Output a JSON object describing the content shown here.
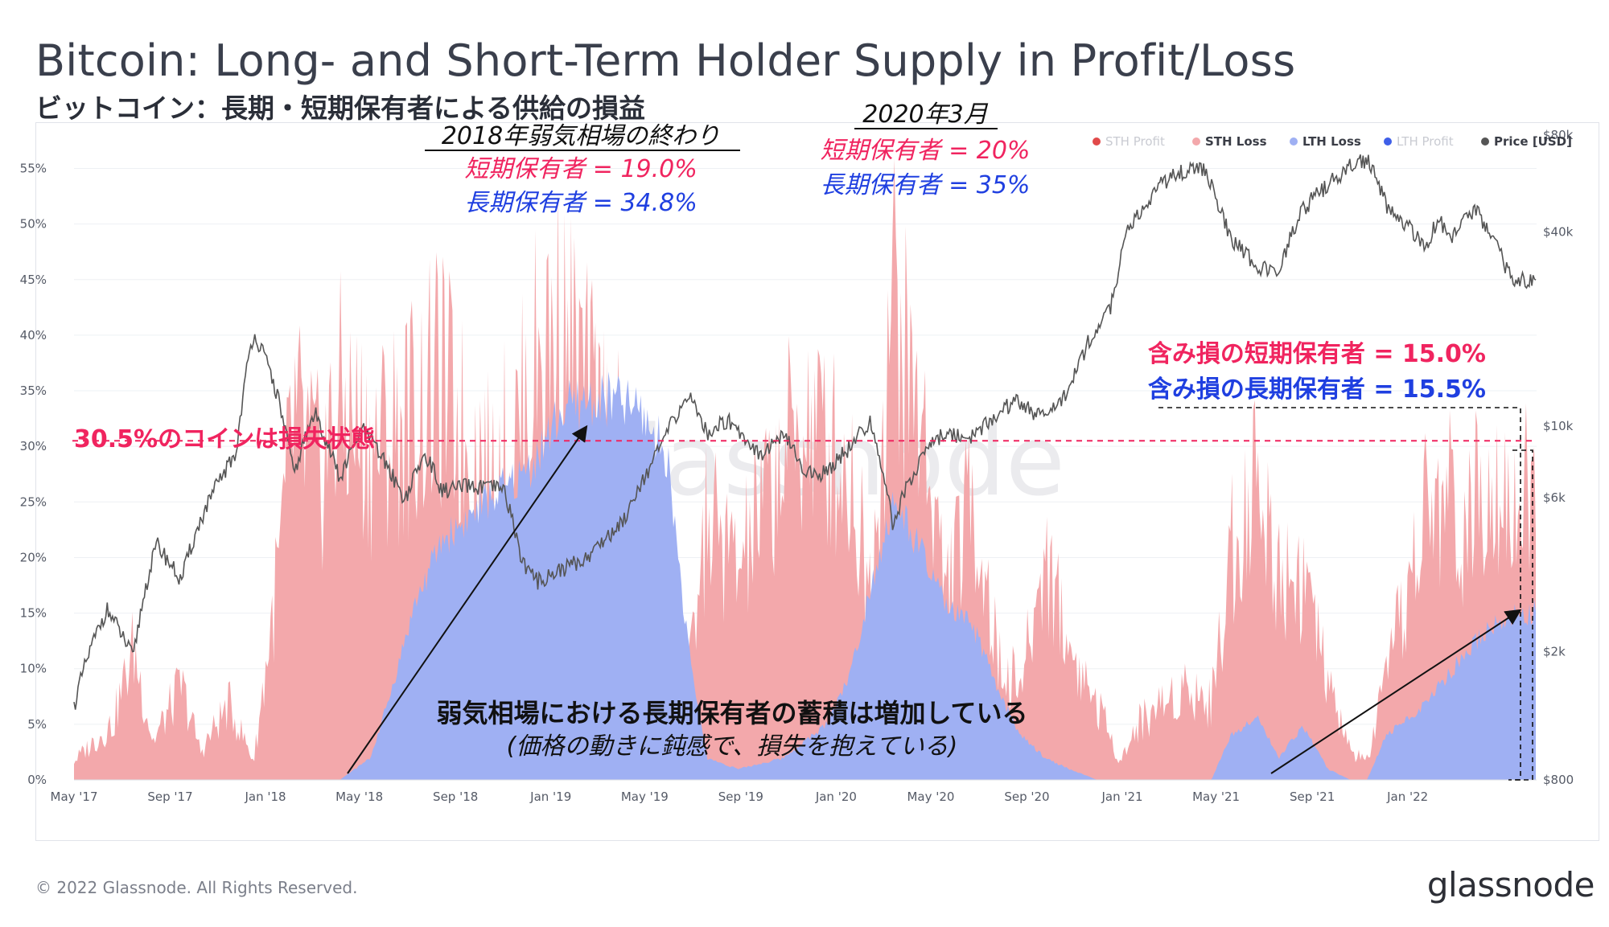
{
  "header": {
    "title": "Bitcoin: Long- and Short-Term Holder Supply in Profit/Loss",
    "subtitle": "ビットコイン：長期・短期保有者による供給の損益"
  },
  "footer": {
    "copyright": "© 2022 Glassnode. All Rights Reserved.",
    "brand": "glassnode"
  },
  "colors": {
    "sth_profit": "#e14a4a",
    "sth_loss": "#f3a8ab",
    "lth_loss": "#9fb0f3",
    "lth_profit": "#3f5fe8",
    "price": "#555555",
    "annot_pink": "#f0245f",
    "annot_blue": "#1f3fe0"
  },
  "legend": [
    "STH Profit",
    "STH Loss",
    "LTH Loss",
    "LTH Profit",
    "Price [USD]"
  ],
  "annotations": {
    "bear_end_title": "2018年弱気相場の終わり",
    "bear_end_sth": "短期保有者 = 19.0%",
    "bear_end_lth": "長期保有者 = 34.8%",
    "mar2020_title": "2020年3月",
    "mar2020_sth": "短期保有者 = 20%",
    "mar2020_lth": "長期保有者 = 35%",
    "current_sth": "含み損の短期保有者 = 15.0%",
    "current_lth": "含み損の長期保有者 = 15.5%",
    "loss_line": "30.5%のコインは損失状態",
    "accum_main": "弱気相場における長期保有者の蓄積は増加している",
    "accum_sub": "(価格の動きに鈍感で、損失を抱えている)",
    "watermark": "glassnode"
  },
  "chart_data": {
    "type": "area",
    "title": "Bitcoin: Long- and Short-Term Holder Supply in Profit/Loss",
    "y_left_ticks": [
      "0%",
      "5%",
      "10%",
      "15%",
      "20%",
      "25%",
      "30%",
      "35%",
      "40%",
      "45%",
      "50%",
      "55%"
    ],
    "y_right_ticks": [
      "$800",
      "$2k",
      "$6k",
      "$10k",
      "$40k",
      "$80k"
    ],
    "x_ticks": [
      "May '17",
      "Sep '17",
      "Jan '18",
      "May '18",
      "Sep '18",
      "Jan '19",
      "May '19",
      "Sep '19",
      "Jan '20",
      "May '20",
      "Sep '20",
      "Jan '21",
      "May '21",
      "Sep '21",
      "Jan '22"
    ],
    "y_left_range": [
      0,
      58
    ],
    "y_right_range_log": [
      800,
      80000
    ],
    "x_range": [
      "2017-05-01",
      "2022-06-15"
    ],
    "reference_line": 30.5,
    "series": [
      {
        "name": "STH Loss",
        "x": [
          "2017-05-01",
          "2017-06-20",
          "2017-07-16",
          "2017-08-10",
          "2017-09-15",
          "2017-10-10",
          "2017-11-15",
          "2017-12-17",
          "2018-01-20",
          "2018-02-06",
          "2018-03-10",
          "2018-04-06",
          "2018-05-15",
          "2018-06-28",
          "2018-08-14",
          "2018-09-15",
          "2018-10-15",
          "2018-11-25",
          "2018-12-15",
          "2019-01-15",
          "2019-02-20",
          "2019-03-25",
          "2019-04-25",
          "2019-05-30",
          "2019-06-26",
          "2019-07-20",
          "2019-08-29",
          "2019-09-25",
          "2019-10-25",
          "2019-11-25",
          "2019-12-18",
          "2020-01-20",
          "2020-02-14",
          "2020-03-13",
          "2020-03-30",
          "2020-04-25",
          "2020-05-20",
          "2020-06-25",
          "2020-07-27",
          "2020-08-25",
          "2020-09-25",
          "2020-10-25",
          "2020-11-30",
          "2020-12-30",
          "2021-01-22",
          "2021-02-20",
          "2021-03-25",
          "2021-04-25",
          "2021-05-19",
          "2021-06-22",
          "2021-07-20",
          "2021-08-20",
          "2021-09-21",
          "2021-10-20",
          "2021-11-10",
          "2021-12-04",
          "2022-01-24",
          "2022-02-25",
          "2022-03-20",
          "2022-04-15",
          "2022-05-12",
          "2022-06-10"
        ],
        "values": [
          2,
          6,
          14,
          4,
          10,
          3,
          8,
          2,
          24,
          38,
          32,
          40,
          35,
          38,
          42,
          36,
          32,
          38,
          45,
          48,
          40,
          35,
          25,
          12,
          10,
          28,
          22,
          28,
          34,
          38,
          36,
          32,
          20,
          52,
          44,
          36,
          20,
          30,
          12,
          10,
          24,
          14,
          8,
          2,
          6,
          8,
          10,
          8,
          24,
          32,
          22,
          22,
          10,
          3,
          2,
          10,
          28,
          30,
          26,
          35,
          30,
          30
        ]
      },
      {
        "name": "LTH Loss",
        "x": [
          "2017-05-01",
          "2017-12-17",
          "2018-03-01",
          "2018-04-06",
          "2018-05-15",
          "2018-06-10",
          "2018-07-10",
          "2018-08-14",
          "2018-09-15",
          "2018-10-15",
          "2018-11-25",
          "2018-12-15",
          "2019-01-15",
          "2019-02-20",
          "2019-03-25",
          "2019-04-25",
          "2019-05-30",
          "2019-06-26",
          "2019-07-20",
          "2019-08-29",
          "2019-10-25",
          "2019-12-18",
          "2020-01-20",
          "2020-02-14",
          "2020-03-13",
          "2020-03-30",
          "2020-04-25",
          "2020-05-20",
          "2020-06-25",
          "2020-07-27",
          "2020-08-25",
          "2020-09-25",
          "2020-10-25",
          "2020-11-30",
          "2021-01-01",
          "2021-04-25",
          "2021-05-19",
          "2021-06-22",
          "2021-07-20",
          "2021-08-20",
          "2021-09-21",
          "2021-10-20",
          "2021-11-10",
          "2021-12-04",
          "2022-01-24",
          "2022-02-25",
          "2022-03-20",
          "2022-04-15",
          "2022-05-12",
          "2022-06-10"
        ],
        "values": [
          0,
          0,
          0,
          0,
          2,
          8,
          16,
          22,
          24,
          26,
          28,
          30,
          34,
          35,
          35,
          34,
          30,
          12,
          2,
          1,
          2,
          5,
          10,
          18,
          25,
          24,
          20,
          16,
          14,
          8,
          4,
          2,
          1,
          0,
          0,
          0,
          4,
          6,
          2,
          5,
          1,
          0,
          0,
          4,
          7,
          10,
          12,
          14,
          15,
          15.5
        ]
      },
      {
        "name": "Price [USD]",
        "x": [
          "2017-05-01",
          "2017-06-12",
          "2017-07-16",
          "2017-08-15",
          "2017-09-15",
          "2017-10-20",
          "2017-11-25",
          "2017-12-17",
          "2018-01-10",
          "2018-02-06",
          "2018-03-05",
          "2018-04-06",
          "2018-05-05",
          "2018-06-28",
          "2018-07-25",
          "2018-08-14",
          "2018-09-15",
          "2018-11-01",
          "2018-11-25",
          "2018-12-15",
          "2019-01-15",
          "2019-02-15",
          "2019-04-02",
          "2019-05-15",
          "2019-06-26",
          "2019-07-20",
          "2019-08-15",
          "2019-09-25",
          "2019-10-26",
          "2019-11-25",
          "2019-12-18",
          "2020-01-20",
          "2020-02-14",
          "2020-03-13",
          "2020-03-30",
          "2020-04-30",
          "2020-05-20",
          "2020-06-25",
          "2020-07-27",
          "2020-08-17",
          "2020-09-25",
          "2020-10-25",
          "2020-11-20",
          "2020-12-17",
          "2021-01-08",
          "2021-02-21",
          "2021-03-13",
          "2021-04-14",
          "2021-05-19",
          "2021-06-22",
          "2021-07-20",
          "2021-08-20",
          "2021-09-06",
          "2021-10-20",
          "2021-11-10",
          "2021-12-04",
          "2022-01-24",
          "2022-02-10",
          "2022-02-24",
          "2022-03-28",
          "2022-04-15",
          "2022-05-12",
          "2022-06-10"
        ],
        "values": [
          1350,
          2700,
          1900,
          4300,
          3300,
          5800,
          8300,
          19500,
          14000,
          7000,
          11000,
          6800,
          9800,
          5900,
          8200,
          6300,
          6500,
          6400,
          3800,
          3300,
          3600,
          3900,
          5000,
          8000,
          12500,
          9500,
          10500,
          8200,
          9300,
          7100,
          7200,
          8700,
          10300,
          4900,
          6400,
          8800,
          9500,
          9300,
          11000,
          12000,
          10500,
          13000,
          18500,
          23000,
          40000,
          57000,
          61000,
          63500,
          38000,
          31500,
          29800,
          47000,
          52000,
          64000,
          67500,
          49000,
          36000,
          44000,
          37500,
          47000,
          40000,
          29000,
          28000
        ]
      }
    ],
    "grid": true,
    "legend_position": "top-right"
  }
}
